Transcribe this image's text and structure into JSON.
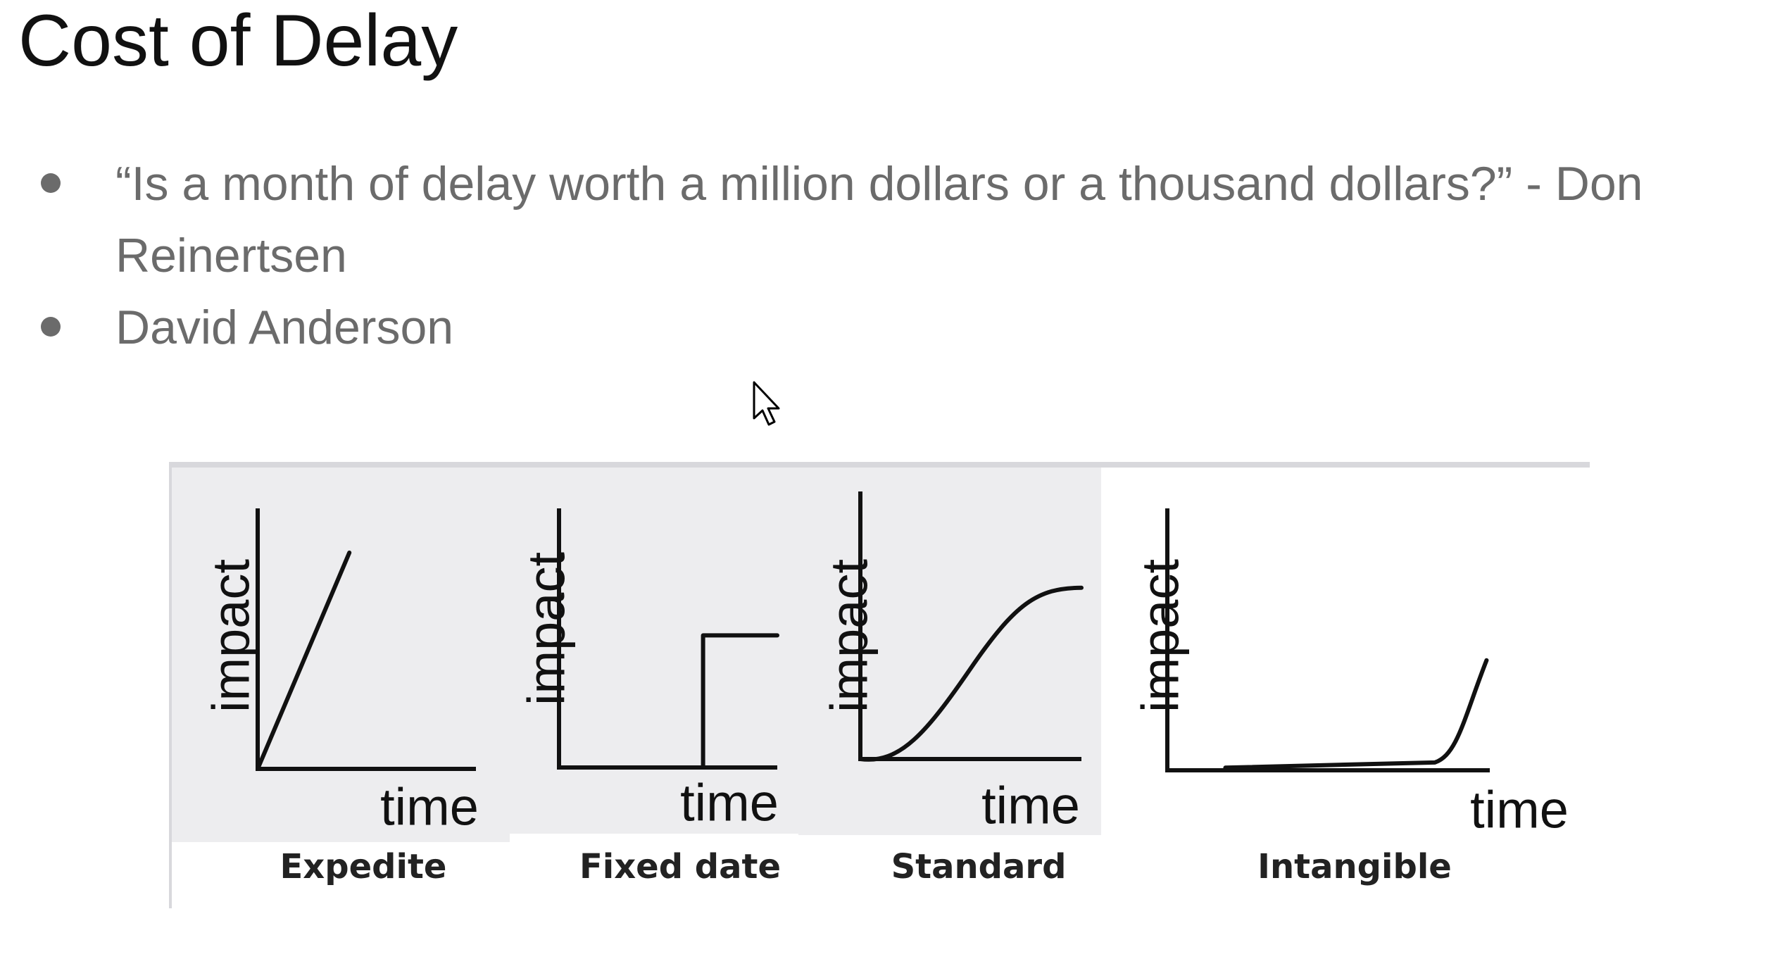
{
  "slide": {
    "title": "Cost of Delay",
    "bullets": [
      "“Is a month of delay worth a million dollars or a thousand dollars?” - Don Reinertsen",
      "David Anderson"
    ]
  },
  "diagram": {
    "panels": [
      {
        "y_label": "impact",
        "x_label": "time",
        "caption": "Expedite",
        "shape": "linear"
      },
      {
        "y_label": "impact",
        "x_label": "time",
        "caption": "Fixed date",
        "shape": "step"
      },
      {
        "y_label": "impact",
        "x_label": "time",
        "caption": "Standard",
        "shape": "s-curve"
      },
      {
        "y_label": "impact",
        "x_label": "time",
        "caption": "Intangible",
        "shape": "late-rise"
      }
    ],
    "colors": {
      "panel_bg_shaded": "#ededef",
      "line": "#111111",
      "caption": "#222222"
    }
  },
  "cursor": {
    "icon": "mouse-pointer-icon"
  }
}
